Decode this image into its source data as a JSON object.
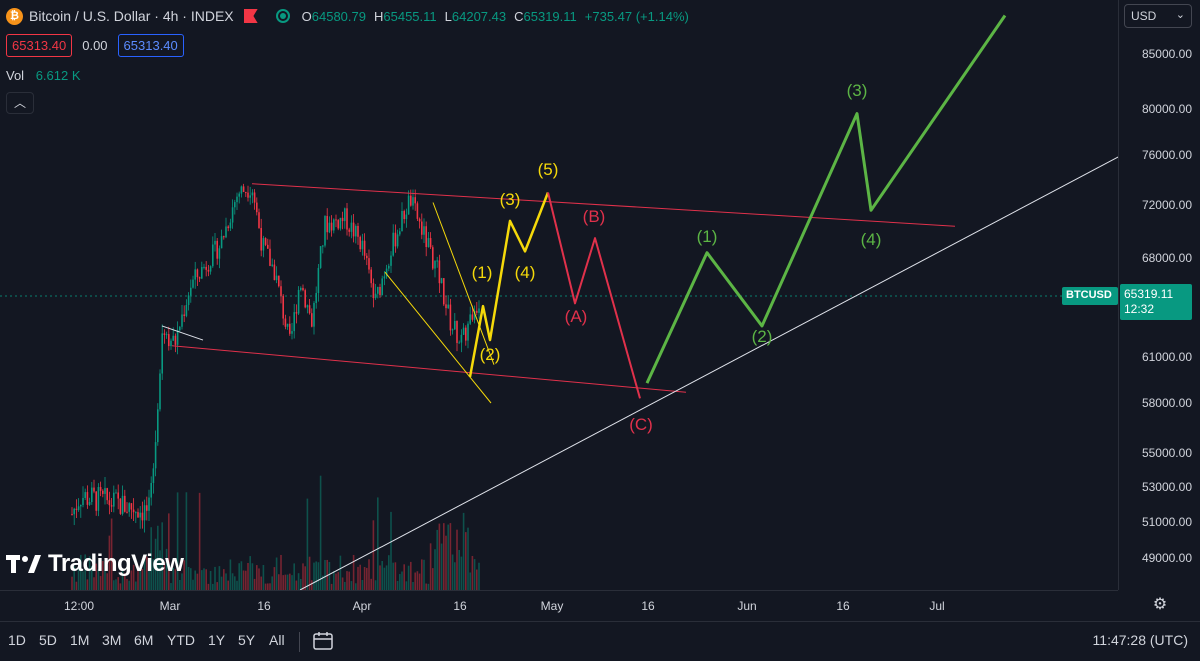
{
  "header": {
    "symbol_title": "Bitcoin / U.S. Dollar · 4h · INDEX",
    "logo_icon": "bitcoin-logo-icon",
    "ohlc": [
      {
        "label": "O",
        "value": "64580.79"
      },
      {
        "label": "H",
        "value": "65455.11"
      },
      {
        "label": "L",
        "value": "64207.43"
      },
      {
        "label": "C",
        "value": "65319.11"
      }
    ],
    "change": "+735.47 (+1.14%)",
    "bid": "65313.40",
    "spread": "0.00",
    "ask": "65313.40",
    "vol_label": "Vol",
    "vol_value": "6.612 K",
    "collapse_icon": "chevron-up-icon"
  },
  "currency": "USD",
  "last_price": {
    "symbol": "BTCUSD",
    "price": "65319.11",
    "countdown": "12:32"
  },
  "price_ticks": [
    "85000.00",
    "80000.00",
    "76000.00",
    "72000.00",
    "68000.00",
    "65319.11",
    "61000.00",
    "58000.00",
    "55000.00",
    "53000.00",
    "51000.00",
    "49000.00"
  ],
  "time_ticks": [
    "12:00",
    "Mar",
    "16",
    "Apr",
    "16",
    "May",
    "16",
    "Jun",
    "16",
    "Jul"
  ],
  "range_buttons": [
    "1D",
    "5D",
    "1M",
    "3M",
    "6M",
    "YTD",
    "1Y",
    "5Y",
    "All"
  ],
  "clock": "11:47:28 (UTC)",
  "watermark": "TradingView",
  "colors": {
    "up": "#089981",
    "down": "#f23645",
    "yellow": "#f5d90a",
    "red_wave": "#e0314b",
    "green_wave": "#5cb545",
    "bg": "#131722"
  },
  "annotations": {
    "yellow": [
      "(1)",
      "(2)",
      "(3)",
      "(4)",
      "(5)"
    ],
    "red": [
      "(A)",
      "(B)",
      "(C)"
    ],
    "green": [
      "(1)",
      "(2)",
      "(3)",
      "(4)"
    ]
  },
  "chart_data": {
    "type": "candlestick",
    "title": "Bitcoin / U.S. Dollar · 4h · INDEX",
    "ylim": [
      47000,
      88000
    ],
    "last": 65319.11,
    "wave_projection_yellow": [
      {
        "label": "(1)",
        "price": 64600
      },
      {
        "label": "(2)",
        "price": 62200
      },
      {
        "label": "(3)",
        "price": 70800
      },
      {
        "label": "(4)",
        "price": 68500
      },
      {
        "label": "(5)",
        "price": 73000
      }
    ],
    "wave_projection_red": [
      {
        "label": "(A)",
        "price": 64800
      },
      {
        "label": "(B)",
        "price": 69500
      },
      {
        "label": "(C)",
        "price": 58300
      }
    ],
    "wave_projection_green": [
      {
        "label": "(1)",
        "price": 68400
      },
      {
        "label": "(2)",
        "price": 63200
      },
      {
        "label": "(3)",
        "price": 79600
      },
      {
        "label": "(4)",
        "price": 71600
      }
    ]
  }
}
